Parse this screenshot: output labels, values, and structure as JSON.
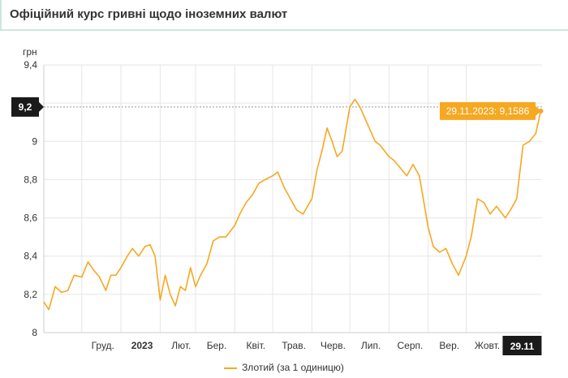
{
  "header": {
    "title": "Офіційний курс гривні щодо іноземних валют"
  },
  "chart_data": {
    "type": "line",
    "title": "Офіційний курс гривні щодо іноземних валют",
    "ylabel": "грн",
    "xlabel": "",
    "ylim": [
      8,
      9.4
    ],
    "yticks": [
      "8",
      "8,2",
      "8,4",
      "8,6",
      "8,8",
      "9",
      "9,2",
      "9,4"
    ],
    "ytick_values": [
      8,
      8.2,
      8.4,
      8.6,
      8.8,
      9,
      9.2,
      9.4
    ],
    "xlim": [
      "2022-11-01",
      "2023-11-30"
    ],
    "x_ticks": [
      {
        "label": "Груд.",
        "date": "2022-12-01"
      },
      {
        "label": "2023",
        "date": "2023-01-01",
        "bold": true
      },
      {
        "label": "Лют.",
        "date": "2023-02-01"
      },
      {
        "label": "Бер.",
        "date": "2023-03-01"
      },
      {
        "label": "Квіт.",
        "date": "2023-04-01"
      },
      {
        "label": "Трав.",
        "date": "2023-05-01"
      },
      {
        "label": "Черв.",
        "date": "2023-06-01"
      },
      {
        "label": "Лип.",
        "date": "2023-07-01"
      },
      {
        "label": "Серп.",
        "date": "2023-08-01"
      },
      {
        "label": "Вер.",
        "date": "2023-09-01"
      },
      {
        "label": "Жовт.",
        "date": "2023-10-01"
      }
    ],
    "grid": true,
    "legend_position": "bottom",
    "series": [
      {
        "name": "Злотий (за 1 одиницю)",
        "color": "#f6a821",
        "x": [
          "2022-11-01",
          "2022-11-05",
          "2022-11-10",
          "2022-11-15",
          "2022-11-20",
          "2022-11-25",
          "2022-12-01",
          "2022-12-06",
          "2022-12-10",
          "2022-12-15",
          "2022-12-20",
          "2022-12-24",
          "2022-12-28",
          "2023-01-01",
          "2023-01-06",
          "2023-01-10",
          "2023-01-15",
          "2023-01-20",
          "2023-01-24",
          "2023-01-28",
          "2023-02-01",
          "2023-02-05",
          "2023-02-09",
          "2023-02-13",
          "2023-02-17",
          "2023-02-21",
          "2023-02-25",
          "2023-03-01",
          "2023-03-05",
          "2023-03-10",
          "2023-03-15",
          "2023-03-20",
          "2023-03-25",
          "2023-04-01",
          "2023-04-05",
          "2023-04-10",
          "2023-04-15",
          "2023-04-20",
          "2023-04-25",
          "2023-05-01",
          "2023-05-05",
          "2023-05-10",
          "2023-05-15",
          "2023-05-20",
          "2023-05-25",
          "2023-06-01",
          "2023-06-05",
          "2023-06-09",
          "2023-06-13",
          "2023-06-17",
          "2023-06-21",
          "2023-06-25",
          "2023-07-01",
          "2023-07-05",
          "2023-07-09",
          "2023-07-13",
          "2023-07-17",
          "2023-07-21",
          "2023-07-25",
          "2023-08-01",
          "2023-08-05",
          "2023-08-10",
          "2023-08-15",
          "2023-08-20",
          "2023-08-25",
          "2023-09-01",
          "2023-09-05",
          "2023-09-10",
          "2023-09-15",
          "2023-09-20",
          "2023-09-25",
          "2023-10-01",
          "2023-10-05",
          "2023-10-10",
          "2023-10-15",
          "2023-10-20",
          "2023-10-25",
          "2023-11-01",
          "2023-11-05",
          "2023-11-10",
          "2023-11-15",
          "2023-11-20",
          "2023-11-25",
          "2023-11-29"
        ],
        "values": [
          8.16,
          8.12,
          8.24,
          8.21,
          8.22,
          8.3,
          8.29,
          8.37,
          8.33,
          8.29,
          8.22,
          8.3,
          8.3,
          8.34,
          8.4,
          8.44,
          8.4,
          8.45,
          8.46,
          8.4,
          8.17,
          8.3,
          8.2,
          8.14,
          8.24,
          8.22,
          8.34,
          8.24,
          8.3,
          8.36,
          8.48,
          8.5,
          8.5,
          8.56,
          8.62,
          8.68,
          8.72,
          8.78,
          8.8,
          8.82,
          8.84,
          8.76,
          8.7,
          8.64,
          8.62,
          8.7,
          8.85,
          8.95,
          9.07,
          9.0,
          8.92,
          8.95,
          9.18,
          9.22,
          9.18,
          9.12,
          9.06,
          9.0,
          8.98,
          8.92,
          8.9,
          8.86,
          8.82,
          8.88,
          8.82,
          8.55,
          8.45,
          8.42,
          8.44,
          8.36,
          8.3,
          8.4,
          8.5,
          8.7,
          8.68,
          8.62,
          8.66,
          8.6,
          8.64,
          8.7,
          8.98,
          9.0,
          9.04,
          9.1586
        ]
      }
    ],
    "annotation": {
      "label": "29.11.2023: 9,1586",
      "date": "2023-11-29",
      "value": 9.1586
    },
    "crosshair": {
      "y_label": "9,2",
      "x_label": "29.11",
      "value": 9.18
    }
  }
}
